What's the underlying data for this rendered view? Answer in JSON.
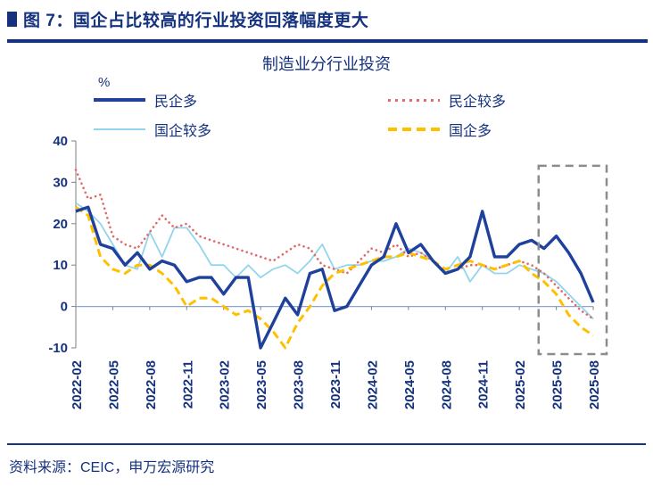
{
  "header": {
    "title": "图 7：国企占比较高的行业投资回落幅度更大"
  },
  "footer": {
    "source": "资料来源：CEIC，申万宏源研究"
  },
  "colors": {
    "navy_text": "#15327f",
    "series_dark_blue": "#1f409b",
    "series_red": "#e06a6a",
    "series_light_blue": "#92d5ec",
    "series_yellow": "#ffc000",
    "highlight_gray": "#8c8c8c",
    "zero_line": "#8aa6d9",
    "axis_gray": "#7f7f7f"
  },
  "chart_data": {
    "type": "line",
    "title": "制造业分行业投资",
    "unit_label": "%",
    "grid": false,
    "legend_position": "top",
    "ylim": [
      -10,
      40
    ],
    "yticks": [
      40,
      30,
      20,
      10,
      0,
      -10
    ],
    "x_tick_every": 3,
    "x": [
      "2022-02",
      "2022-03",
      "2022-04",
      "2022-05",
      "2022-06",
      "2022-07",
      "2022-08",
      "2022-09",
      "2022-10",
      "2022-11",
      "2022-12",
      "2023-01",
      "2023-02",
      "2023-03",
      "2023-04",
      "2023-05",
      "2023-06",
      "2023-07",
      "2023-08",
      "2023-09",
      "2023-10",
      "2023-11",
      "2023-12",
      "2024-01",
      "2024-02",
      "2024-03",
      "2024-04",
      "2024-05",
      "2024-06",
      "2024-07",
      "2024-08",
      "2024-09",
      "2024-10",
      "2024-11",
      "2024-12",
      "2025-01",
      "2025-02",
      "2025-03",
      "2025-04",
      "2025-05",
      "2025-06",
      "2025-07",
      "2025-08"
    ],
    "series": [
      {
        "name": "民企多",
        "color": "#1f409b",
        "style": "solid-thick",
        "values": [
          23,
          24,
          15,
          14,
          10,
          13,
          9,
          11,
          10,
          6,
          7,
          7,
          3,
          7,
          7,
          -10,
          -4,
          2,
          -2,
          8,
          9,
          -1,
          0,
          5,
          10,
          12,
          20,
          13,
          15,
          11,
          8,
          9,
          12,
          23,
          12,
          12,
          15,
          16,
          14,
          17,
          13,
          8,
          1
        ]
      },
      {
        "name": "民企较多",
        "color": "#e06a6a",
        "style": "dotted",
        "values": [
          33,
          26,
          27,
          17,
          15,
          14,
          18,
          22,
          19,
          20,
          17,
          16,
          15,
          14,
          13,
          12,
          11,
          13,
          15,
          14,
          10,
          9,
          8,
          11,
          14,
          13,
          15,
          12,
          13,
          11,
          8,
          9,
          10,
          10,
          9,
          10,
          11,
          10,
          8,
          5,
          2,
          -1,
          -3
        ]
      },
      {
        "name": "国企较多",
        "color": "#92d5ec",
        "style": "solid-thin",
        "values": [
          25,
          23,
          20,
          15,
          10,
          9,
          18,
          12,
          19,
          19,
          15,
          10,
          10,
          7,
          10,
          7,
          9,
          10,
          8,
          11,
          15,
          9,
          10,
          10,
          11,
          11,
          12,
          14,
          13,
          11,
          8,
          12,
          6,
          10,
          8,
          8,
          10,
          9,
          8,
          6,
          3,
          0,
          -3
        ]
      },
      {
        "name": "国企多",
        "color": "#ffc000",
        "style": "dashed",
        "values": [
          24,
          22,
          12,
          9,
          8,
          10,
          10,
          8,
          5,
          0,
          2,
          2,
          0,
          -2,
          -1,
          -3,
          -6,
          -10,
          -4,
          0,
          5,
          8,
          9,
          10,
          11,
          12,
          12,
          13,
          12,
          11,
          9,
          10,
          11,
          10,
          9,
          10,
          11,
          8,
          6,
          3,
          -2,
          -5,
          -7
        ]
      }
    ],
    "highlight_box": {
      "x_start": "2025-04",
      "y_min": -11.5,
      "y_max": 34,
      "color": "#8c8c8c"
    }
  }
}
